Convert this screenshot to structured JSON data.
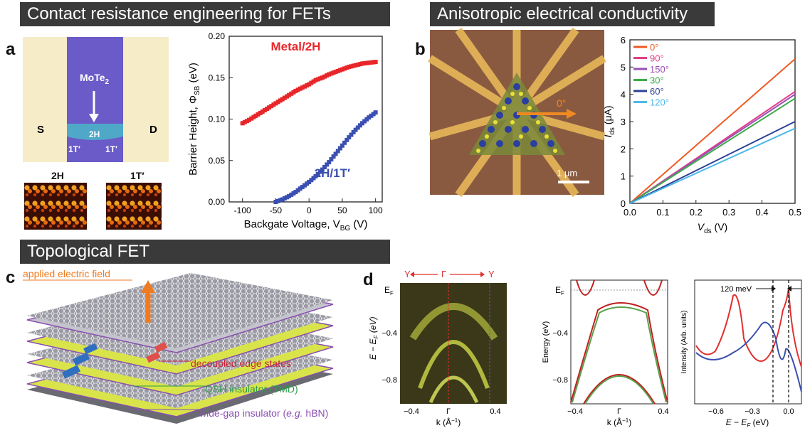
{
  "sections": {
    "contact": "Contact resistance engineering for FETs",
    "aniso": "Anisotropic electrical conductivity",
    "topo": "Topological FET"
  },
  "panels": {
    "a": "a",
    "b": "b",
    "c": "c",
    "d": "d"
  },
  "panel_a": {
    "device": {
      "material": "MoTe",
      "material_sub": "2",
      "s": "S",
      "d": "D",
      "region": "2H",
      "left_t": "1T′",
      "right_t": "1T′"
    },
    "stm_2h": "2H",
    "stm_1t": "1T′"
  },
  "panel_b": {
    "angle": "0°",
    "scale": "1 μm"
  },
  "panel_c": {
    "field": "applied electric field",
    "edge": "decoupled edge states",
    "qsh": "QSH insulator (TMD)",
    "wide_pre": "wide-gap insulator (",
    "wide_eg": "e.g.",
    "wide_post": " hBN)"
  },
  "panel_d": {
    "y_left": "Y",
    "gamma": "Γ",
    "y_right": "Y",
    "ef": "E",
    "ef_sub": "F",
    "arpes_ylabel": "E − E",
    "arpes_ylabel_sub": "F",
    "arpes_ylabel_post": " (eV)",
    "arpes_yticks": [
      "−0.4",
      "−0.8"
    ],
    "arpes_xticks": [
      "−0.4",
      "Γ",
      "0.4"
    ],
    "arpes_xlabel": "k (Å",
    "arpes_xlabel_sup": "−1",
    "calc_ylabel": "Energy (eV)",
    "calc_yticks": [
      "−0.4",
      "−0.8"
    ],
    "calc_xticks": [
      "−0.4",
      "Γ",
      "0.4"
    ],
    "calc_xlabel": "k (Å",
    "spec_ylabel": "Intensity (Arb. units)",
    "spec_annot": "120 meV",
    "spec_xticks": [
      "−0.6",
      "−0.3",
      "0.0"
    ],
    "spec_xlabel": "E − E",
    "spec_xlabel_sub": "F",
    "spec_xlabel_post": " (eV)"
  },
  "chart_data": [
    {
      "type": "scatter",
      "xlabel": "Backgate Voltage, V",
      "xlabel_sub": "BG",
      "xlabel_post": " (V)",
      "ylabel": "Barrier Height, Φ",
      "ylabel_sub": "SB",
      "ylabel_post": " (eV)",
      "xlim": [
        -120,
        110
      ],
      "ylim": [
        0,
        0.2
      ],
      "xticks": [
        -100,
        -50,
        0,
        50,
        100
      ],
      "yticks": [
        0.0,
        0.05,
        0.1,
        0.15,
        0.2
      ],
      "ytick_labels": [
        "0.00",
        "0.05",
        "0.10",
        "0.15",
        "0.20"
      ],
      "series": [
        {
          "name": "Metal/2H",
          "color": "#e8262a",
          "x": [
            -100,
            -90,
            -80,
            -70,
            -60,
            -50,
            -40,
            -30,
            -20,
            -10,
            0,
            10,
            20,
            30,
            40,
            50,
            60,
            70,
            80,
            90,
            100
          ],
          "y": [
            0.095,
            0.099,
            0.104,
            0.109,
            0.114,
            0.119,
            0.124,
            0.129,
            0.134,
            0.138,
            0.142,
            0.147,
            0.15,
            0.154,
            0.157,
            0.16,
            0.163,
            0.165,
            0.167,
            0.168,
            0.169
          ]
        },
        {
          "name": "2H/1T′",
          "color": "#3b4fb0",
          "x": [
            -50,
            -40,
            -30,
            -20,
            -10,
            0,
            10,
            20,
            30,
            40,
            50,
            60,
            70,
            80,
            90,
            100
          ],
          "y": [
            0.0,
            0.003,
            0.007,
            0.012,
            0.018,
            0.024,
            0.031,
            0.039,
            0.048,
            0.058,
            0.068,
            0.078,
            0.087,
            0.095,
            0.102,
            0.108
          ]
        }
      ]
    },
    {
      "type": "line",
      "xlabel": "V",
      "xlabel_sub": "ds",
      "xlabel_post": " (V)",
      "ylabel": "I",
      "ylabel_sub": "ds",
      "ylabel_post": " (μA)",
      "xlim": [
        0,
        0.5
      ],
      "ylim": [
        0,
        6
      ],
      "xticks": [
        0.0,
        0.1,
        0.2,
        0.3,
        0.4,
        0.5
      ],
      "xtick_labels": [
        "0.0",
        "0.1",
        "0.2",
        "0.3",
        "0.4",
        "0.5"
      ],
      "yticks": [
        0,
        1,
        2,
        3,
        4,
        5,
        6
      ],
      "legend": "top-left",
      "series": [
        {
          "name": "0°",
          "color": "#ef5a24",
          "x": [
            0,
            0.5
          ],
          "y": [
            0,
            5.3
          ]
        },
        {
          "name": "90°",
          "color": "#e0408a",
          "x": [
            0,
            0.5
          ],
          "y": [
            0,
            4.1
          ]
        },
        {
          "name": "150°",
          "color": "#9a4fb5",
          "x": [
            0,
            0.5
          ],
          "y": [
            0,
            4.0
          ]
        },
        {
          "name": "30°",
          "color": "#3cab4a",
          "x": [
            0,
            0.5
          ],
          "y": [
            0,
            3.85
          ]
        },
        {
          "name": "60°",
          "color": "#2d3f96",
          "x": [
            0,
            0.5
          ],
          "y": [
            0,
            3.0
          ]
        },
        {
          "name": "120°",
          "color": "#4fb8e8",
          "x": [
            0,
            0.5
          ],
          "y": [
            0,
            2.75
          ]
        }
      ]
    }
  ]
}
